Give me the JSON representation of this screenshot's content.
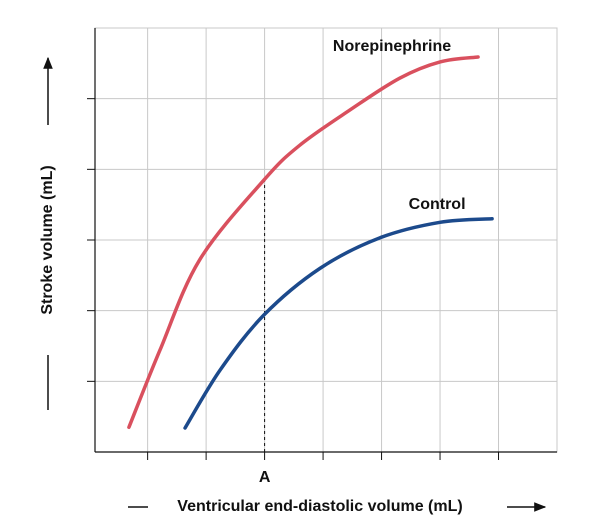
{
  "chart_data": {
    "type": "line",
    "x_label": "Ventricular end-diastolic volume (mL)",
    "y_label": "Stroke volume (mL)",
    "xlim": [
      0.1,
      8
    ],
    "xticks": [
      1,
      2,
      3,
      4,
      5,
      6,
      7
    ],
    "ylim": [
      0,
      6
    ],
    "yticks": [
      1,
      2,
      3,
      4,
      5
    ],
    "grid": true,
    "series": [
      {
        "name": "Norepinephrine",
        "color": "#d9505e",
        "x": [
          0.68,
          1.21,
          1.89,
          2.99,
          3.6,
          4.46,
          5.31,
          6.0,
          6.65
        ],
        "values": [
          0.35,
          1.44,
          2.72,
          3.85,
          4.34,
          4.84,
          5.29,
          5.52,
          5.59
        ]
      },
      {
        "name": "Control",
        "color": "#1c4a8c",
        "x": [
          1.64,
          2.24,
          2.99,
          3.95,
          4.97,
          6.0,
          6.89
        ],
        "values": [
          0.34,
          1.16,
          1.94,
          2.6,
          3.03,
          3.25,
          3.3
        ]
      }
    ],
    "annotations": [
      {
        "label": "A",
        "x": 3,
        "y": 3.85
      }
    ]
  }
}
